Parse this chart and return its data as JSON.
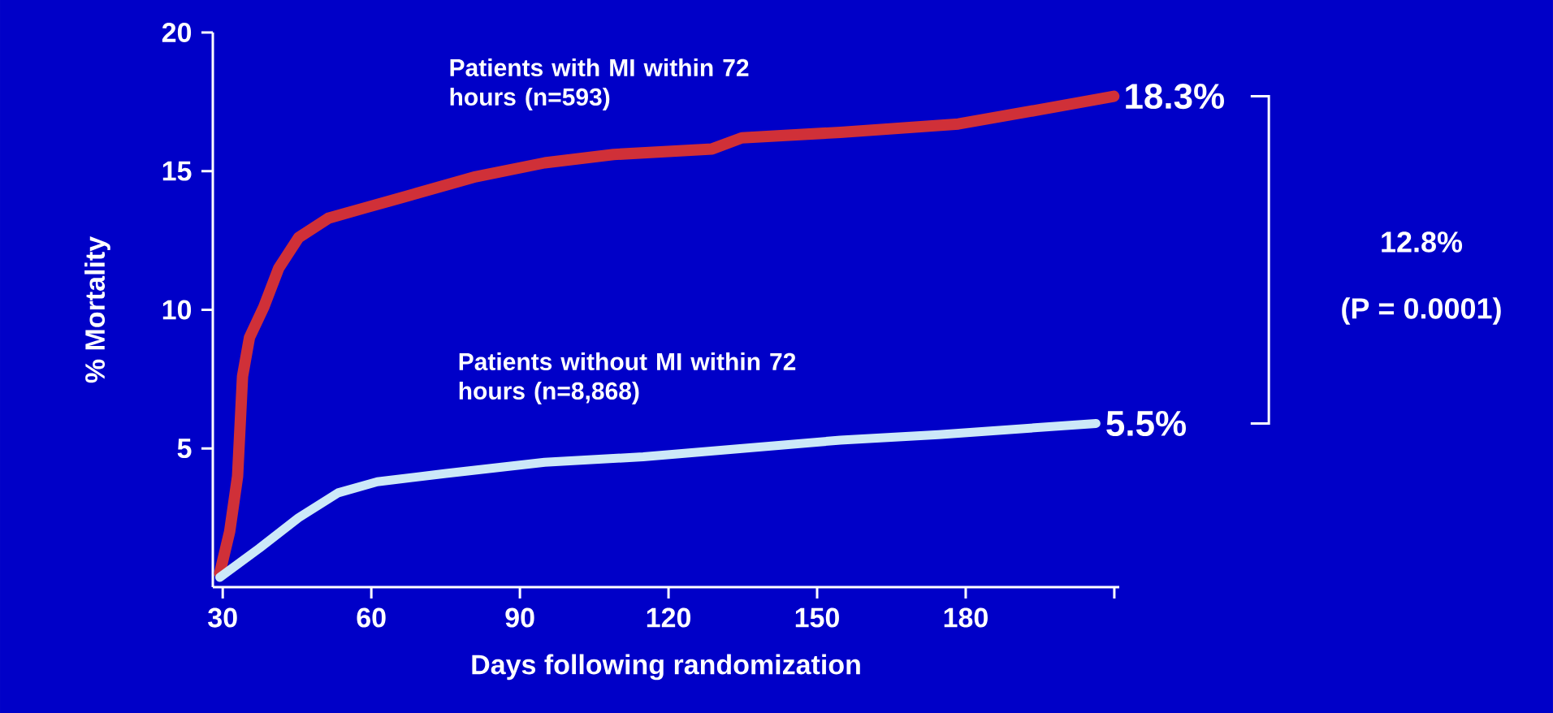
{
  "chart_data": {
    "type": "line",
    "xlabel": "Days following randomization",
    "ylabel": "%  Mortality",
    "xlim": [
      28,
      211
    ],
    "ylim": [
      0,
      20
    ],
    "xticks": [
      30,
      60,
      90,
      120,
      150,
      180,
      {
        "value": 210,
        "label": null
      }
    ],
    "yticks": [
      5,
      10,
      15,
      20
    ],
    "series": [
      {
        "name": "Patients with MI within 72 hours (n=593)",
        "color": "#d03038",
        "x": [
          29.4,
          31.4,
          33,
          34,
          35.4,
          38.3,
          41.3,
          45.3,
          51.3,
          59.2,
          69.2,
          81.1,
          95,
          108.9,
          128.8,
          134.8,
          154.7,
          178.5,
          194.4,
          209.9
        ],
        "values": [
          0.5,
          2,
          4,
          7.6,
          9,
          10.1,
          11.5,
          12.6,
          13.3,
          13.7,
          14.2,
          14.8,
          15.3,
          15.6,
          15.8,
          16.2,
          16.4,
          16.7,
          17.2,
          17.7
        ]
      },
      {
        "name": "Patients without MI within 72 hours (n=8,868)",
        "color": "#cce8f8",
        "x": [
          29.4,
          37.4,
          45.3,
          53.3,
          61.2,
          75.1,
          95,
          114.9,
          134.8,
          154.7,
          174.5,
          206.3
        ],
        "values": [
          0.35,
          1.4,
          2.5,
          3.4,
          3.8,
          4.1,
          4.5,
          4.7,
          5.0,
          5.3,
          5.5,
          5.9
        ]
      }
    ],
    "annotations": [
      {
        "text": "18.3%",
        "x": 210,
        "y": 17.7
      },
      {
        "text": "5.5%",
        "x": 206.3,
        "y": 5.9
      },
      "12.8%",
      "(P = 0.0001)"
    ]
  }
}
